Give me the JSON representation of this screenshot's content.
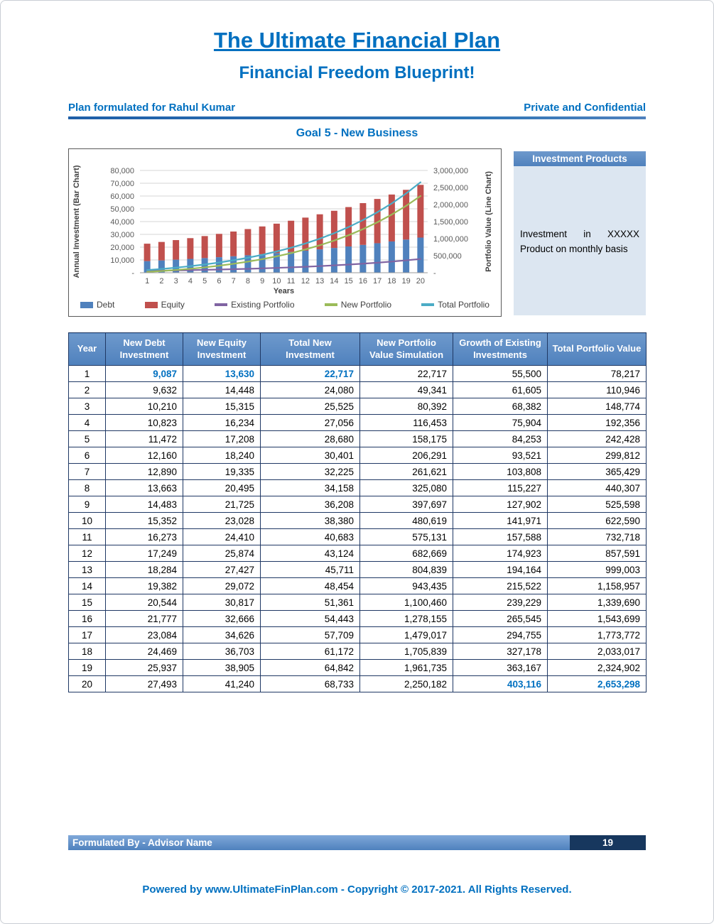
{
  "header": {
    "title": "The Ultimate Financial Plan",
    "subtitle": "Financial Freedom Blueprint!",
    "plan_for": "Plan formulated for Rahul Kumar",
    "confidential": "Private and Confidential"
  },
  "goal_title": "Goal 5 - New Business",
  "investment_products": {
    "header": "Investment Products",
    "body": "Investment in XXXXX Product on monthly basis"
  },
  "chart_data": {
    "type": "combo-bar-line",
    "x": [
      1,
      2,
      3,
      4,
      5,
      6,
      7,
      8,
      9,
      10,
      11,
      12,
      13,
      14,
      15,
      16,
      17,
      18,
      19,
      20
    ],
    "xlabel": "Years",
    "grid": true,
    "legend_position": "bottom",
    "left_axis": {
      "label": "Annual Investment (Bar Chart)",
      "max": 80000,
      "tick_labels": [
        "80,000",
        "70,000",
        "60,000",
        "50,000",
        "40,000",
        "30,000",
        "20,000",
        "10,000",
        "-"
      ]
    },
    "right_axis": {
      "label": "Portfolio Value (Line Chart)",
      "max": 3000000,
      "tick_labels": [
        "3,000,000",
        "2,500,000",
        "2,000,000",
        "1,500,000",
        "1,000,000",
        "500,000",
        "-"
      ]
    },
    "bar_series": [
      {
        "name": "Debt",
        "color": "#4F81BD",
        "stacked": true,
        "values": [
          9087,
          9632,
          10210,
          10823,
          11472,
          12160,
          12890,
          13663,
          14483,
          15352,
          16273,
          17249,
          18284,
          19382,
          20544,
          21777,
          23084,
          24469,
          25937,
          27493
        ]
      },
      {
        "name": "Equity",
        "color": "#C0504D",
        "stacked": true,
        "values": [
          13630,
          14448,
          15315,
          16234,
          17208,
          18240,
          19335,
          20495,
          21725,
          23028,
          24410,
          25874,
          27427,
          29072,
          30817,
          32666,
          34626,
          36703,
          38905,
          41240
        ]
      }
    ],
    "line_series": [
      {
        "name": "Existing Portfolio",
        "color": "#8064A2",
        "values": [
          55500,
          61605,
          68382,
          75904,
          84253,
          93521,
          103808,
          115227,
          127902,
          141971,
          157588,
          174923,
          194164,
          215522,
          239229,
          265545,
          294755,
          327178,
          363167,
          403116
        ]
      },
      {
        "name": "New Portfolio",
        "color": "#9BBB59",
        "values": [
          22717,
          49341,
          80392,
          116453,
          158175,
          206291,
          261621,
          325080,
          397697,
          480619,
          575131,
          682669,
          804839,
          943435,
          1100460,
          1278155,
          1479017,
          1705839,
          1961735,
          2250182
        ]
      },
      {
        "name": "Total Portfolio",
        "color": "#4BACC6",
        "values": [
          78217,
          110946,
          148774,
          192356,
          242428,
          299812,
          365429,
          440307,
          525598,
          622590,
          732718,
          857591,
          999003,
          1158957,
          1339690,
          1543699,
          1773772,
          2033017,
          2324902,
          2653298
        ]
      }
    ]
  },
  "table": {
    "headers": [
      "Year",
      "New Debt Investment",
      "New Equity Investment",
      "Total New Investment",
      "New Portfolio Value Simulation",
      "Growth of Existing Investments",
      "Total Portfolio Value"
    ],
    "rows": [
      [
        "1",
        "9,087",
        "13,630",
        "22,717",
        "22,717",
        "55,500",
        "78,217"
      ],
      [
        "2",
        "9,632",
        "14,448",
        "24,080",
        "49,341",
        "61,605",
        "110,946"
      ],
      [
        "3",
        "10,210",
        "15,315",
        "25,525",
        "80,392",
        "68,382",
        "148,774"
      ],
      [
        "4",
        "10,823",
        "16,234",
        "27,056",
        "116,453",
        "75,904",
        "192,356"
      ],
      [
        "5",
        "11,472",
        "17,208",
        "28,680",
        "158,175",
        "84,253",
        "242,428"
      ],
      [
        "6",
        "12,160",
        "18,240",
        "30,401",
        "206,291",
        "93,521",
        "299,812"
      ],
      [
        "7",
        "12,890",
        "19,335",
        "32,225",
        "261,621",
        "103,808",
        "365,429"
      ],
      [
        "8",
        "13,663",
        "20,495",
        "34,158",
        "325,080",
        "115,227",
        "440,307"
      ],
      [
        "9",
        "14,483",
        "21,725",
        "36,208",
        "397,697",
        "127,902",
        "525,598"
      ],
      [
        "10",
        "15,352",
        "23,028",
        "38,380",
        "480,619",
        "141,971",
        "622,590"
      ],
      [
        "11",
        "16,273",
        "24,410",
        "40,683",
        "575,131",
        "157,588",
        "732,718"
      ],
      [
        "12",
        "17,249",
        "25,874",
        "43,124",
        "682,669",
        "174,923",
        "857,591"
      ],
      [
        "13",
        "18,284",
        "27,427",
        "45,711",
        "804,839",
        "194,164",
        "999,003"
      ],
      [
        "14",
        "19,382",
        "29,072",
        "48,454",
        "943,435",
        "215,522",
        "1,158,957"
      ],
      [
        "15",
        "20,544",
        "30,817",
        "51,361",
        "1,100,460",
        "239,229",
        "1,339,690"
      ],
      [
        "16",
        "21,777",
        "32,666",
        "54,443",
        "1,278,155",
        "265,545",
        "1,543,699"
      ],
      [
        "17",
        "23,084",
        "34,626",
        "57,709",
        "1,479,017",
        "294,755",
        "1,773,772"
      ],
      [
        "18",
        "24,469",
        "36,703",
        "61,172",
        "1,705,839",
        "327,178",
        "2,033,017"
      ],
      [
        "19",
        "25,937",
        "38,905",
        "64,842",
        "1,961,735",
        "363,167",
        "2,324,902"
      ],
      [
        "20",
        "27,493",
        "41,240",
        "68,733",
        "2,250,182",
        "403,116",
        "2,653,298"
      ]
    ],
    "highlight_cells": [
      [
        0,
        1
      ],
      [
        0,
        2
      ],
      [
        0,
        3
      ],
      [
        19,
        5
      ],
      [
        19,
        6
      ]
    ]
  },
  "footer": {
    "formulated_by": "Formulated By - Advisor Name",
    "page_number": "19",
    "powered_by": "Powered by www.UltimateFinPlan.com - Copyright © 2017-2021. All Rights Reserved."
  },
  "colors": {
    "accent_blue": "#0070C0",
    "table_header_blue": "#4F81BD",
    "table_border_navy": "#1F3864",
    "panel_body_blue": "#DCE6F1",
    "footer_dark_navy": "#17375E"
  }
}
